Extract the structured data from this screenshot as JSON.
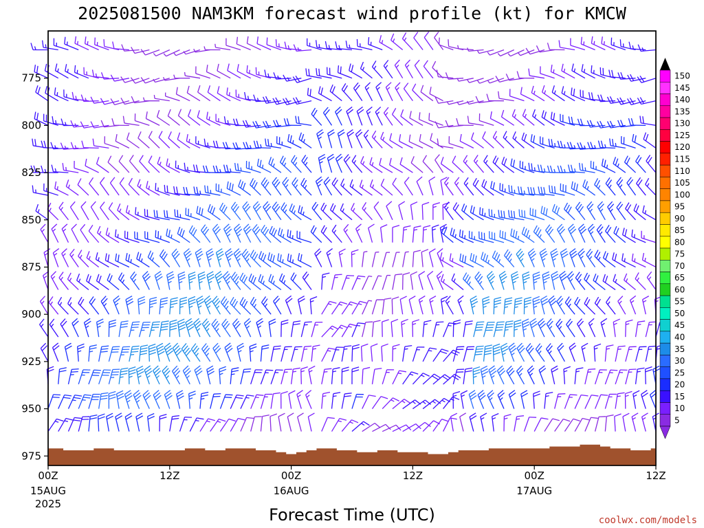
{
  "chart_data": {
    "type": "wind_barb_profile",
    "title": "2025081500 NAM3KM forecast wind profile (kt) for KMCW",
    "xlabel": "Forecast Time (UTC)",
    "ylabel": "",
    "credit": "coolwx.com/models",
    "y_axis": {
      "unit": "hPa",
      "reversed": true,
      "range": [
        750,
        980
      ],
      "ticks": [
        775,
        800,
        825,
        850,
        875,
        900,
        925,
        950,
        975
      ]
    },
    "x_axis": {
      "unit": "forecast hour",
      "range": [
        0,
        60
      ],
      "ticks": [
        {
          "hour": 0,
          "label": "00Z",
          "sub": [
            "15AUG",
            "2025"
          ]
        },
        {
          "hour": 12,
          "label": "12Z",
          "sub": []
        },
        {
          "hour": 24,
          "label": "00Z",
          "sub": [
            "16AUG"
          ]
        },
        {
          "hour": 36,
          "label": "12Z",
          "sub": []
        },
        {
          "hour": 48,
          "label": "00Z",
          "sub": [
            "17AUG"
          ]
        },
        {
          "hour": 60,
          "label": "12Z",
          "sub": []
        }
      ]
    },
    "colorbar": {
      "levels": [
        5,
        10,
        15,
        20,
        25,
        30,
        35,
        40,
        45,
        50,
        55,
        60,
        65,
        70,
        75,
        80,
        85,
        90,
        95,
        100,
        105,
        110,
        115,
        120,
        125,
        130,
        135,
        140,
        145,
        150
      ],
      "colors": [
        "#8a2be2",
        "#7a1fff",
        "#3a10ff",
        "#1a2dff",
        "#1f50ff",
        "#2a6cff",
        "#1d8ce8",
        "#1eb0f0",
        "#10d0d0",
        "#00f0c0",
        "#00e090",
        "#20d020",
        "#30f040",
        "#70f070",
        "#b0f000",
        "#ffff00",
        "#ffea00",
        "#ffcc00",
        "#ff9f00",
        "#ff8400",
        "#ff7000",
        "#ff5000",
        "#ff2000",
        "#ff0000",
        "#ff0040",
        "#ff0070",
        "#ff00a0",
        "#ff00d0",
        "#ff30ff",
        "#ff00ff"
      ]
    },
    "time_step_hours": 1,
    "pressure_levels": [
      760,
      775,
      787,
      800,
      812,
      825,
      837,
      850,
      862,
      875,
      887,
      900,
      912,
      925,
      937,
      950,
      962
    ],
    "surface_pressure": [
      971,
      971,
      972,
      972,
      972,
      971,
      971,
      972,
      972,
      972,
      972,
      972,
      972,
      972,
      971,
      971,
      972,
      972,
      971,
      971,
      971,
      972,
      972,
      973,
      974,
      973,
      972,
      971,
      971,
      972,
      972,
      973,
      973,
      972,
      972,
      973,
      973,
      973,
      974,
      974,
      973,
      972,
      972,
      972,
      971,
      971,
      971,
      971,
      971,
      971,
      970,
      970,
      970,
      969,
      969,
      970,
      971,
      971,
      972,
      972,
      971
    ],
    "wind_field": {
      "description": "Wind barbs per forecast hour and pressure level (speed in kt, direction in degrees from which wind blows); generated series sampled from figure",
      "directions_profile": [
        270,
        275,
        280,
        285,
        290,
        295,
        300,
        305,
        310,
        320,
        330,
        340,
        350,
        350,
        355,
        0,
        10
      ],
      "speeds_profile": [
        15,
        17,
        18,
        20,
        22,
        24,
        26,
        28,
        30,
        32,
        33,
        34,
        35,
        36,
        34,
        30,
        20
      ]
    }
  }
}
